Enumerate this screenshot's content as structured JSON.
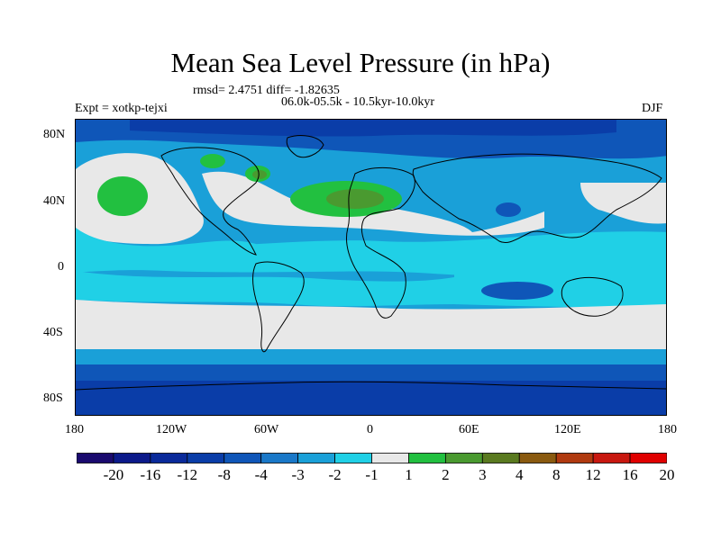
{
  "title": "Mean Sea Level Pressure (in hPa)",
  "stats": "rmsd= 2.4751 diff= -1.82635",
  "period": "06.0k-05.5k - 10.5kyr-10.0kyr",
  "experiment": "Expt = xotkp-tejxi",
  "season": "DJF",
  "axes": {
    "lat_ticks": [
      "80N",
      "40N",
      "0",
      "40S",
      "80S"
    ],
    "lon_ticks": [
      "180",
      "120W",
      "60W",
      "0",
      "60E",
      "120E",
      "180"
    ]
  },
  "colorbar": {
    "labels": [
      "-20",
      "-16",
      "-12",
      "-8",
      "-4",
      "-3",
      "-2",
      "-1",
      "1",
      "2",
      "3",
      "4",
      "8",
      "12",
      "16",
      "20"
    ],
    "colors": [
      "#1a0a6e",
      "#0c1a8a",
      "#0a2a9a",
      "#0a3da8",
      "#0f56b8",
      "#1a78c8",
      "#1aa0d8",
      "#20d0e6",
      "#e8e8e8",
      "#22c040",
      "#4a9a30",
      "#5a7a20",
      "#8a5a10",
      "#b03a10",
      "#c81810",
      "#e00000"
    ]
  },
  "map_colors": {
    "ocean_base": "#1aa0d8",
    "deep_blue": "#0f56b8",
    "darker_blue": "#0a3da8",
    "cyan": "#20d0e6",
    "neutral": "#e8e8e8",
    "green": "#22c040",
    "olive": "#4a9a30",
    "coast": "#000000"
  }
}
